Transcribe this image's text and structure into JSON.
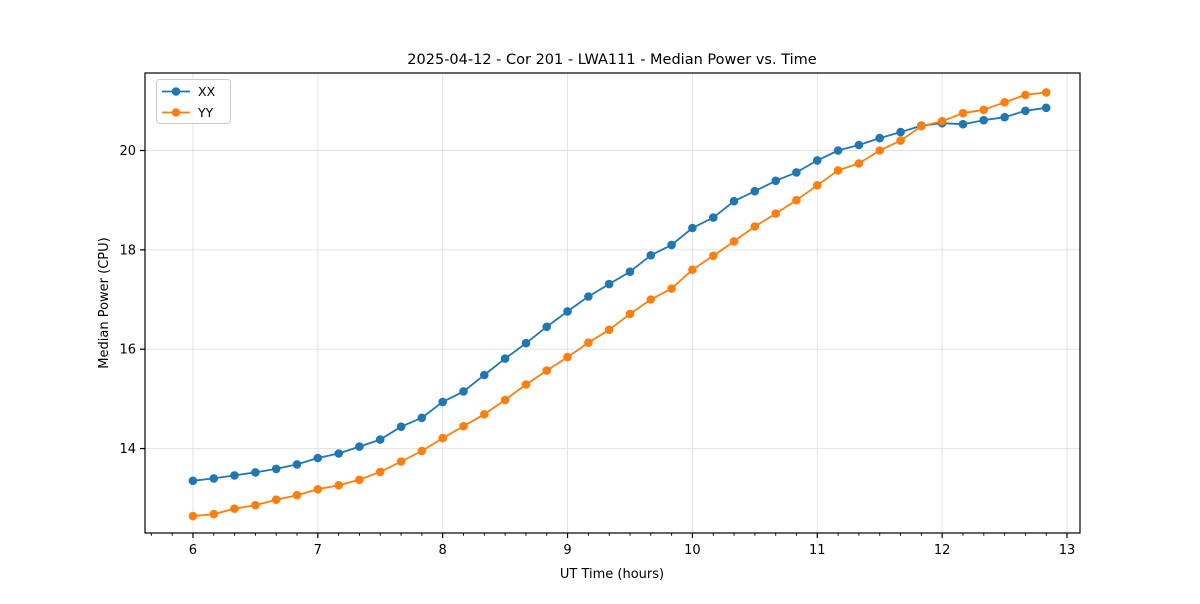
{
  "chart_data": {
    "type": "line",
    "title": "2025-04-12 - Cor 201 - LWA111 - Median Power vs. Time",
    "xlabel": "UT Time (hours)",
    "ylabel": "Median Power (CPU)",
    "xlim": [
      5.616,
      13.104
    ],
    "ylim": [
      12.3,
      21.56
    ],
    "xticks": [
      6,
      7,
      8,
      9,
      10,
      11,
      12,
      13
    ],
    "yticks": [
      14,
      16,
      18,
      20
    ],
    "x_minor_tick_step": 0.16667,
    "grid": true,
    "legend_position": "upper-left",
    "background_color": "#ffffff",
    "grid_color": "#e0e0e0",
    "x": [
      6.0,
      6.167,
      6.333,
      6.5,
      6.667,
      6.833,
      7.0,
      7.167,
      7.333,
      7.5,
      7.667,
      7.833,
      8.0,
      8.167,
      8.333,
      8.5,
      8.667,
      8.833,
      9.0,
      9.167,
      9.333,
      9.5,
      9.667,
      9.833,
      10.0,
      10.167,
      10.333,
      10.5,
      10.667,
      10.833,
      11.0,
      11.167,
      11.333,
      11.5,
      11.667,
      11.833,
      12.0,
      12.167,
      12.333,
      12.5,
      12.667,
      12.833
    ],
    "series": [
      {
        "name": "XX",
        "color": "#1f77b4",
        "values": [
          13.35,
          13.4,
          13.46,
          13.52,
          13.59,
          13.68,
          13.81,
          13.9,
          14.04,
          14.18,
          14.44,
          14.62,
          14.94,
          15.15,
          15.48,
          15.81,
          16.12,
          16.45,
          16.76,
          17.06,
          17.31,
          17.56,
          17.89,
          18.1,
          18.44,
          18.65,
          18.98,
          19.18,
          19.39,
          19.56,
          19.8,
          20.0,
          20.11,
          20.25,
          20.37,
          20.5,
          20.55,
          20.53,
          20.61,
          20.67,
          20.8,
          20.86
        ]
      },
      {
        "name": "YY",
        "color": "#ff7f0e",
        "values": [
          12.64,
          12.68,
          12.79,
          12.86,
          12.97,
          13.06,
          13.18,
          13.26,
          13.37,
          13.53,
          13.74,
          13.95,
          14.21,
          14.45,
          14.69,
          14.98,
          15.29,
          15.57,
          15.84,
          16.13,
          16.39,
          16.71,
          17.0,
          17.22,
          17.6,
          17.88,
          18.17,
          18.47,
          18.73,
          19.0,
          19.3,
          19.6,
          19.74,
          20.0,
          20.2,
          20.49,
          20.59,
          20.75,
          20.82,
          20.97,
          21.12,
          21.17
        ]
      }
    ]
  }
}
